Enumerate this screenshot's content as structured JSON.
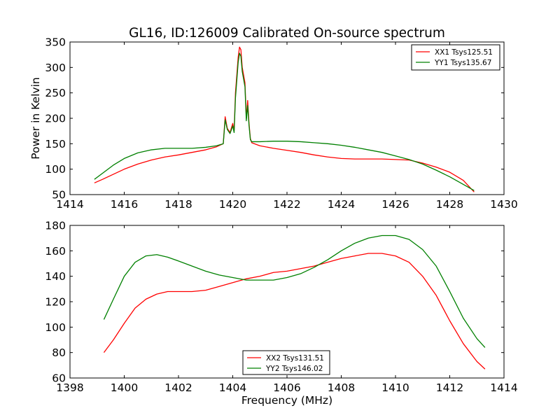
{
  "title": "GL16, ID:126009 Calibrated On-source spectrum",
  "colors": {
    "red": "#ff0000",
    "green": "#008000"
  },
  "chart_data": [
    {
      "type": "line",
      "xlabel": "",
      "ylabel": "Power in Kelvin",
      "xlim": [
        1414,
        1430
      ],
      "ylim": [
        50,
        350
      ],
      "xticks": [
        1414,
        1416,
        1418,
        1420,
        1422,
        1424,
        1426,
        1428,
        1430
      ],
      "yticks": [
        50,
        100,
        150,
        200,
        250,
        300,
        350
      ],
      "legend_position": "top-right",
      "series": [
        {
          "name": "XX1 Tsys125.51",
          "color": "red",
          "x": [
            1414.9,
            1415.2,
            1415.6,
            1416.0,
            1416.5,
            1417.0,
            1417.5,
            1418.0,
            1418.5,
            1419.0,
            1419.4,
            1419.65,
            1419.72,
            1419.8,
            1419.9,
            1420.0,
            1420.05,
            1420.1,
            1420.2,
            1420.25,
            1420.3,
            1420.35,
            1420.45,
            1420.5,
            1420.55,
            1420.6,
            1420.65,
            1420.7,
            1420.8,
            1421.0,
            1421.5,
            1422.0,
            1422.5,
            1423.0,
            1423.5,
            1424.0,
            1424.5,
            1425.0,
            1425.5,
            1426.0,
            1426.5,
            1427.0,
            1427.5,
            1428.0,
            1428.5,
            1428.9
          ],
          "values": [
            73,
            80,
            90,
            100,
            110,
            118,
            124,
            128,
            133,
            138,
            144,
            150,
            203,
            180,
            172,
            190,
            175,
            250,
            320,
            340,
            335,
            300,
            270,
            200,
            235,
            190,
            160,
            152,
            150,
            146,
            141,
            137,
            133,
            128,
            124,
            121,
            120,
            120,
            120,
            119,
            118,
            112,
            104,
            94,
            78,
            55
          ]
        },
        {
          "name": "YY1 Tsys135.67",
          "color": "green",
          "x": [
            1414.9,
            1415.2,
            1415.6,
            1416.0,
            1416.5,
            1417.0,
            1417.5,
            1418.0,
            1418.5,
            1419.0,
            1419.4,
            1419.65,
            1419.72,
            1419.8,
            1419.9,
            1420.0,
            1420.05,
            1420.1,
            1420.2,
            1420.25,
            1420.3,
            1420.35,
            1420.45,
            1420.5,
            1420.55,
            1420.6,
            1420.65,
            1420.7,
            1420.8,
            1421.0,
            1421.5,
            1422.0,
            1422.5,
            1423.0,
            1423.5,
            1424.0,
            1424.5,
            1425.0,
            1425.5,
            1426.0,
            1426.5,
            1427.0,
            1427.5,
            1428.0,
            1428.5,
            1428.9
          ],
          "values": [
            80,
            92,
            108,
            121,
            132,
            138,
            141,
            141,
            141,
            143,
            146,
            150,
            197,
            178,
            170,
            185,
            172,
            240,
            310,
            328,
            322,
            292,
            262,
            195,
            225,
            186,
            158,
            154,
            154,
            154,
            155,
            155,
            154,
            152,
            150,
            147,
            143,
            138,
            133,
            126,
            119,
            110,
            98,
            85,
            70,
            58
          ]
        }
      ]
    },
    {
      "type": "line",
      "xlabel": "Frequency (MHz)",
      "ylabel": "",
      "xlim": [
        1398,
        1414
      ],
      "ylim": [
        60,
        180
      ],
      "xticks": [
        1398,
        1400,
        1402,
        1404,
        1406,
        1408,
        1410,
        1412,
        1414
      ],
      "yticks": [
        60,
        80,
        100,
        120,
        140,
        160,
        180
      ],
      "legend_position": "lower-center",
      "series": [
        {
          "name": "XX2 Tsys131.51",
          "color": "red",
          "x": [
            1399.25,
            1399.6,
            1400.0,
            1400.4,
            1400.8,
            1401.2,
            1401.6,
            1402.0,
            1402.5,
            1403.0,
            1403.5,
            1404.0,
            1404.5,
            1405.0,
            1405.5,
            1406.0,
            1406.5,
            1407.0,
            1407.5,
            1408.0,
            1408.5,
            1409.0,
            1409.5,
            1410.0,
            1410.5,
            1411.0,
            1411.5,
            1412.0,
            1412.5,
            1413.0,
            1413.3
          ],
          "values": [
            80,
            90,
            103,
            115,
            122,
            126,
            128,
            128,
            128,
            129,
            132,
            135,
            138,
            140,
            143,
            144,
            146,
            148,
            151,
            154,
            156,
            158,
            158,
            156,
            151,
            140,
            125,
            105,
            87,
            73,
            67
          ]
        },
        {
          "name": "YY2 Tsys146.02",
          "color": "green",
          "x": [
            1399.25,
            1399.6,
            1400.0,
            1400.4,
            1400.8,
            1401.2,
            1401.6,
            1402.0,
            1402.5,
            1403.0,
            1403.5,
            1404.0,
            1404.5,
            1405.0,
            1405.5,
            1406.0,
            1406.5,
            1407.0,
            1407.5,
            1408.0,
            1408.5,
            1409.0,
            1409.5,
            1410.0,
            1410.5,
            1411.0,
            1411.5,
            1412.0,
            1412.5,
            1413.0,
            1413.3
          ],
          "values": [
            106,
            122,
            140,
            151,
            156,
            157,
            155,
            152,
            148,
            144,
            141,
            139,
            137,
            137,
            137,
            139,
            142,
            147,
            153,
            160,
            166,
            170,
            172,
            172,
            169,
            161,
            148,
            128,
            107,
            91,
            84
          ]
        }
      ]
    }
  ]
}
